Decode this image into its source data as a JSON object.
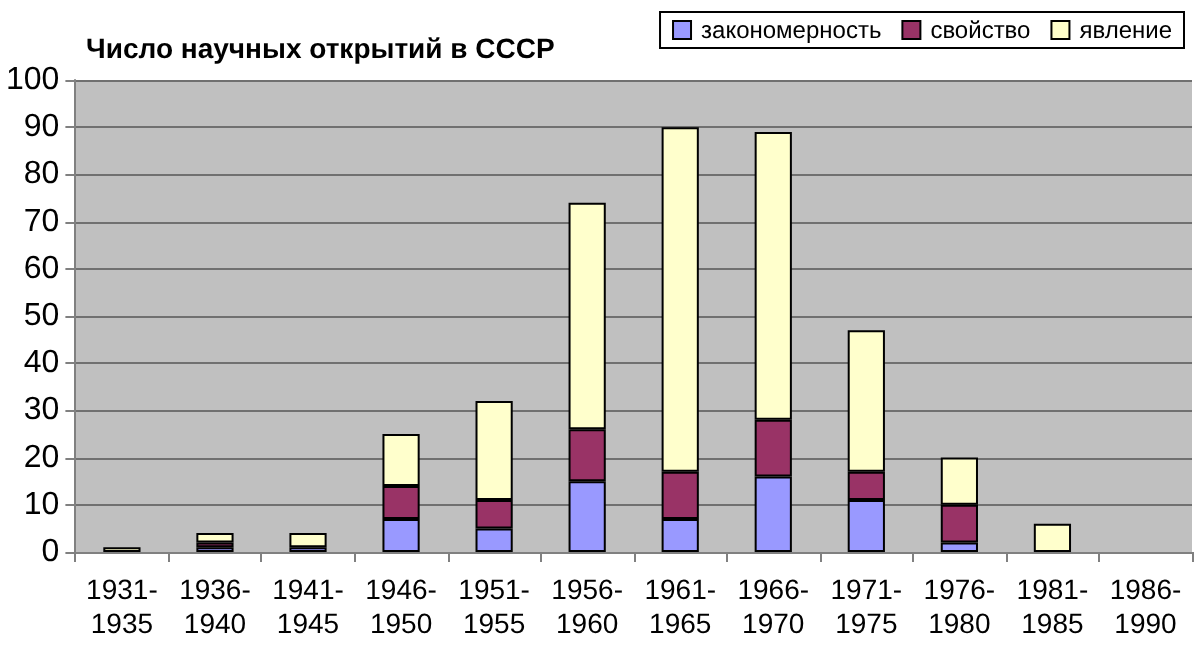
{
  "chart_data": {
    "type": "bar",
    "title": "Число научных открытий в СССР",
    "stacked": true,
    "categories": [
      "1931-\n1935",
      "1936-\n1940",
      "1941-\n1945",
      "1946-\n1950",
      "1951-\n1955",
      "1956-\n1960",
      "1961-\n1965",
      "1966-\n1970",
      "1971-\n1975",
      "1976-\n1980",
      "1981-\n1985",
      "1986-\n1990"
    ],
    "series": [
      {
        "name": "закономерность",
        "color": "#9999ff",
        "values": [
          0,
          1,
          1,
          7,
          5,
          15,
          7,
          16,
          11,
          2,
          0,
          0
        ]
      },
      {
        "name": "свойство",
        "color": "#993366",
        "values": [
          0,
          1,
          0,
          7,
          6,
          11,
          10,
          12,
          6,
          8,
          0,
          0
        ]
      },
      {
        "name": "явление",
        "color": "#ffffcc",
        "values": [
          1,
          2,
          3,
          11,
          21,
          48,
          73,
          61,
          30,
          10,
          6,
          0
        ]
      }
    ],
    "ylim": [
      0,
      100
    ],
    "yticks": [
      0,
      10,
      20,
      30,
      40,
      50,
      60,
      70,
      80,
      90,
      100
    ],
    "grid": "y",
    "legend": "top right"
  }
}
